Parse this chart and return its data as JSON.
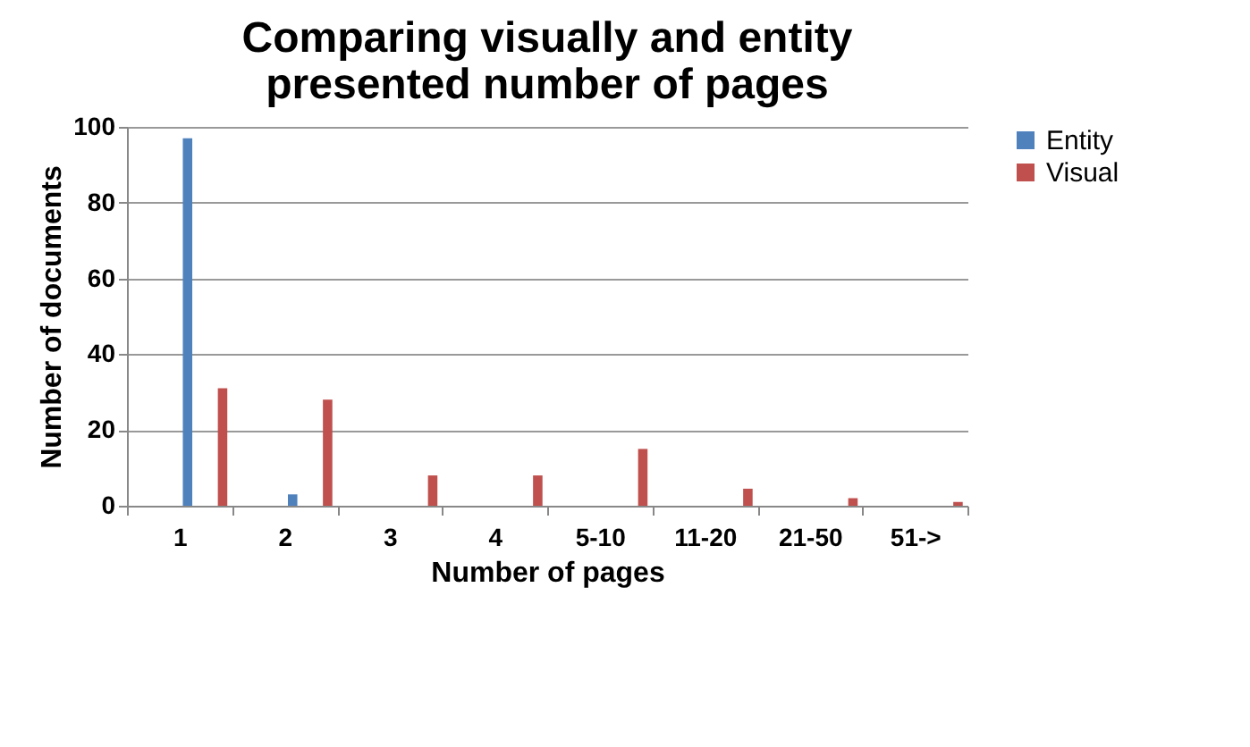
{
  "chart_data": {
    "type": "bar",
    "title": [
      "Comparing visually and entity",
      "presented number of pages"
    ],
    "xlabel": "Number of pages",
    "ylabel": "Number of documents",
    "categories": [
      "1",
      "2",
      "3",
      "4",
      "5-10",
      "11-20",
      "21-50",
      "51->"
    ],
    "series": [
      {
        "name": "Entity",
        "color": "#4f81bd",
        "values": [
          97,
          3,
          0,
          0,
          0,
          0,
          0,
          0
        ]
      },
      {
        "name": "Visual",
        "color": "#c0504d",
        "values": [
          31,
          28,
          8,
          8,
          15,
          4.5,
          2,
          1
        ]
      }
    ],
    "ylim": [
      0,
      100
    ],
    "yticks": [
      0,
      20,
      40,
      60,
      80,
      100
    ],
    "grid": "y",
    "legend": "right"
  }
}
